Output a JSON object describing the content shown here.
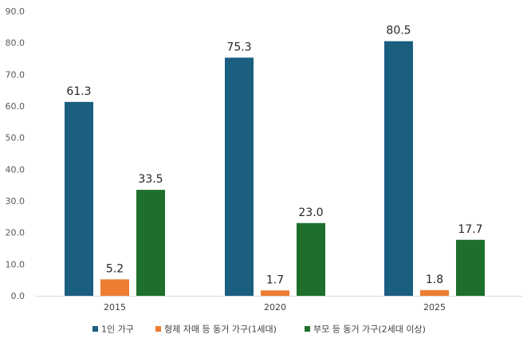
{
  "chart_data": {
    "type": "bar",
    "categories": [
      "2015",
      "2020",
      "2025"
    ],
    "series": [
      {
        "name": "1인 가구",
        "values": [
          61.3,
          75.3,
          80.5
        ],
        "color": "#1a5e80"
      },
      {
        "name": "형제 자매 등 동거 가구(1세대)",
        "values": [
          5.2,
          1.7,
          1.8
        ],
        "color": "#ed7d31"
      },
      {
        "name": "부모 등 동거 가구(2세대 이상)",
        "values": [
          33.5,
          23.0,
          17.7
        ],
        "color": "#1e6f2c"
      }
    ],
    "value_labels": [
      [
        "61.3",
        "75.3",
        "80.5"
      ],
      [
        "5.2",
        "1.7",
        "1.8"
      ],
      [
        "33.5",
        "23.0",
        "17.7"
      ]
    ],
    "y_ticks": [
      "0.0",
      "10.0",
      "20.0",
      "30.0",
      "40.0",
      "50.0",
      "60.0",
      "70.0",
      "80.0",
      "90.0"
    ],
    "ylim": [
      0,
      90
    ],
    "title": "",
    "xlabel": "",
    "ylabel": "",
    "grid": false,
    "legend_position": "bottom"
  }
}
